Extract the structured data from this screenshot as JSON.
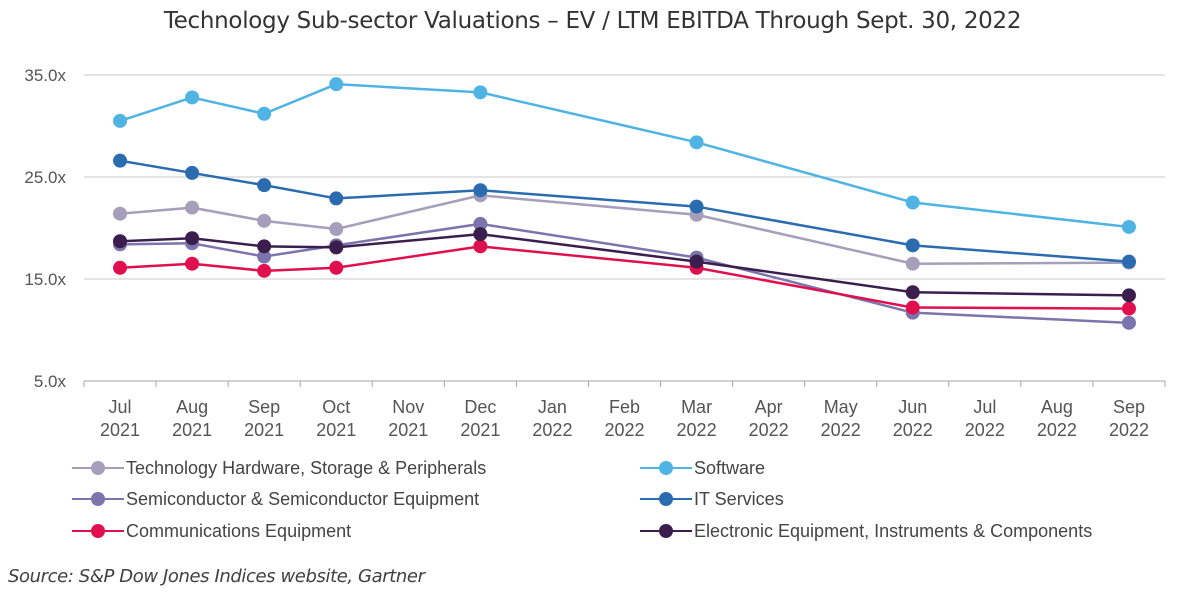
{
  "chart_data": {
    "type": "line",
    "title": "Technology Sub-sector Valuations – EV / LTM EBITDA Through Sept. 30, 2022",
    "xlabel": "",
    "ylabel": "",
    "ylim": [
      5,
      35
    ],
    "yticks": [
      5,
      15,
      25,
      35
    ],
    "ytick_labels": [
      "5.0x",
      "15.0x",
      "25.0x",
      "35.0x"
    ],
    "grid": true,
    "legend_position": "bottom",
    "categories": [
      {
        "month": "Jul",
        "year": "2021"
      },
      {
        "month": "Aug",
        "year": "2021"
      },
      {
        "month": "Sep",
        "year": "2021"
      },
      {
        "month": "Oct",
        "year": "2021"
      },
      {
        "month": "Nov",
        "year": "2021"
      },
      {
        "month": "Dec",
        "year": "2021"
      },
      {
        "month": "Jan",
        "year": "2022"
      },
      {
        "month": "Feb",
        "year": "2022"
      },
      {
        "month": "Mar",
        "year": "2022"
      },
      {
        "month": "Apr",
        "year": "2022"
      },
      {
        "month": "May",
        "year": "2022"
      },
      {
        "month": "Jun",
        "year": "2022"
      },
      {
        "month": "Jul",
        "year": "2022"
      },
      {
        "month": "Aug",
        "year": "2022"
      },
      {
        "month": "Sep",
        "year": "2022"
      }
    ],
    "series": [
      {
        "name": "Technology Hardware, Storage & Peripherals",
        "color": "#a59fbb",
        "values": [
          21.4,
          22.0,
          20.7,
          19.9,
          null,
          23.2,
          null,
          null,
          21.3,
          null,
          null,
          16.5,
          null,
          null,
          16.6
        ]
      },
      {
        "name": "Software",
        "color": "#4fb3e3",
        "values": [
          30.5,
          32.8,
          31.2,
          34.1,
          null,
          33.3,
          null,
          null,
          28.4,
          null,
          null,
          22.5,
          null,
          null,
          20.1
        ]
      },
      {
        "name": "Semiconductor & Semiconductor Equipment",
        "color": "#7b74ad",
        "values": [
          18.4,
          18.5,
          17.2,
          18.3,
          null,
          20.4,
          null,
          null,
          17.1,
          null,
          null,
          11.7,
          null,
          null,
          10.7
        ]
      },
      {
        "name": "IT Services",
        "color": "#2b6cb0",
        "values": [
          26.6,
          25.4,
          24.2,
          22.9,
          null,
          23.7,
          null,
          null,
          22.1,
          null,
          null,
          18.3,
          null,
          null,
          16.7
        ]
      },
      {
        "name": "Communications Equipment",
        "color": "#e0104f",
        "values": [
          16.1,
          16.5,
          15.8,
          16.1,
          null,
          18.2,
          null,
          null,
          16.1,
          null,
          null,
          12.2,
          null,
          null,
          12.1
        ]
      },
      {
        "name": "Electronic Equipment, Instruments & Components",
        "color": "#3b1e4e",
        "values": [
          18.7,
          19.0,
          18.2,
          18.1,
          null,
          19.4,
          null,
          null,
          16.7,
          null,
          null,
          13.7,
          null,
          null,
          13.4
        ]
      }
    ]
  },
  "footer": {
    "source": "Source: S&P Dow Jones Indices website, Gartner"
  }
}
